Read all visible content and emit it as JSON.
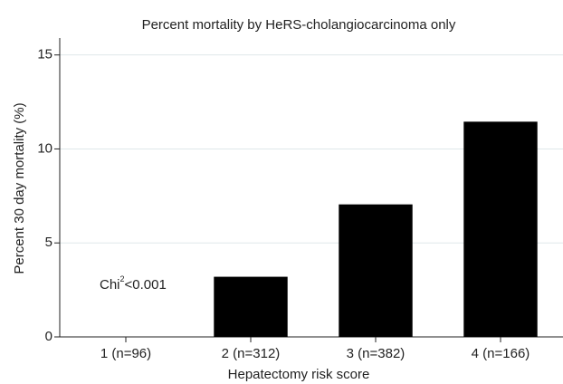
{
  "chart_data": {
    "type": "bar",
    "title": "Percent mortality by HeRS-cholangiocarcinoma only",
    "x_label": "Hepatectomy risk score",
    "y_label": "Percent 30 day mortality (%)",
    "categories": [
      "1 (n=96)",
      "2 (n=312)",
      "3 (n=382)",
      "4 (n=166)"
    ],
    "values": [
      0,
      3.2,
      7.05,
      11.45
    ],
    "color": "#000000",
    "ylim": [
      0,
      15.9
    ],
    "yticks": [
      0,
      5,
      10,
      15
    ],
    "grid": true,
    "annotation": [
      "Chi",
      "2",
      "<0.001"
    ]
  }
}
